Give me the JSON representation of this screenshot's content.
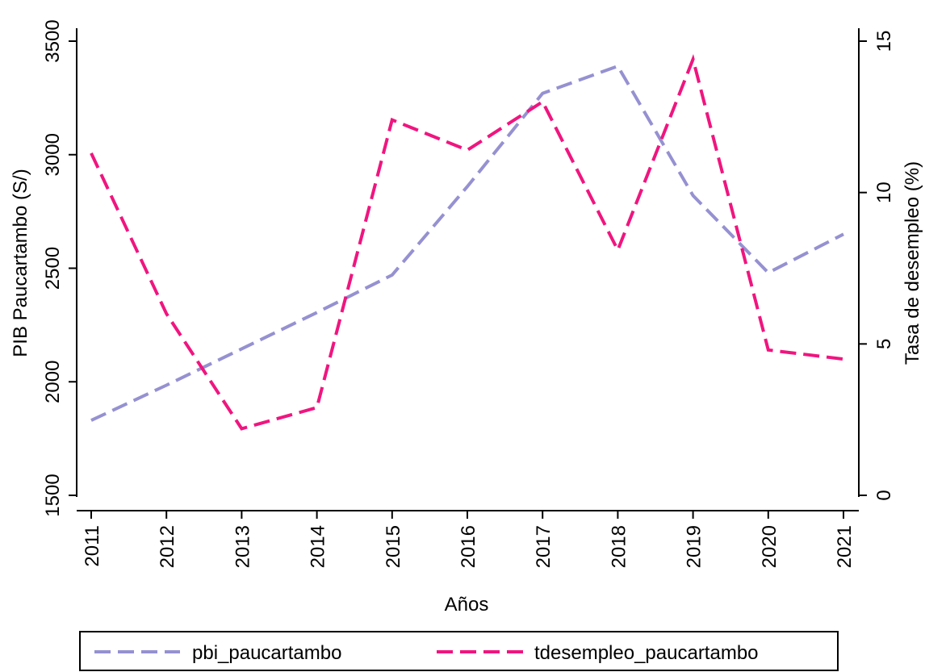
{
  "chart_data": {
    "type": "line",
    "title": "",
    "xlabel": "Años",
    "ylabel_left": "PIB Paucartambo (S/)",
    "ylabel_right": "Tasa de desempleo (%)",
    "x": [
      "2011",
      "2012",
      "2013",
      "2014",
      "2015",
      "2016",
      "2017",
      "2018",
      "2019",
      "2020",
      "2021"
    ],
    "ylim_left": [
      1500,
      3500
    ],
    "yticks_left": [
      "1500",
      "2000",
      "2500",
      "3000",
      "3500"
    ],
    "ylim_right": [
      0,
      15
    ],
    "yticks_right": [
      "0",
      "5",
      "10",
      "15"
    ],
    "grid": false,
    "legend_position": "bottom",
    "series": [
      {
        "name": "pbi_paucartambo",
        "axis": "left",
        "color": "#9591d1",
        "style": "dashed",
        "values": [
          1830,
          1985,
          2145,
          2305,
          2470,
          2860,
          3270,
          3390,
          2820,
          2480,
          2650
        ]
      },
      {
        "name": "tdesempleo_paucartambo",
        "axis": "right",
        "color": "#f0157f",
        "style": "dashed",
        "values": [
          11.3,
          6.0,
          2.2,
          2.9,
          12.4,
          11.4,
          13.0,
          8.1,
          14.4,
          4.8,
          4.5
        ]
      }
    ]
  }
}
